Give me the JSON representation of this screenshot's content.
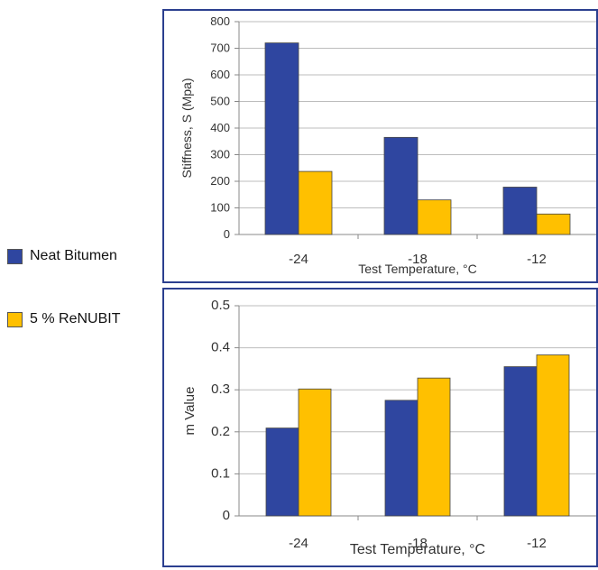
{
  "legend": {
    "items": [
      {
        "label": "Neat Bitumen",
        "color": "#2f46a0"
      },
      {
        "label": "5 % ReNUBIT",
        "color": "#ffc000"
      }
    ]
  },
  "chart_data": [
    {
      "type": "bar",
      "categories": [
        "-24",
        "-18",
        "-12"
      ],
      "series": [
        {
          "name": "Neat Bitumen",
          "values": [
            720,
            365,
            178
          ],
          "color": "#2f46a0"
        },
        {
          "name": "5 % ReNUBIT",
          "values": [
            237,
            130,
            77
          ],
          "color": "#ffc000"
        }
      ],
      "xlabel": "Test Temperature, °C",
      "ylabel": "Stiffness, S (Mpa)",
      "ylim": [
        0,
        800
      ],
      "yticks": [
        "0",
        "100",
        "200",
        "300",
        "400",
        "500",
        "600",
        "700",
        "800"
      ],
      "grid": true,
      "legend_position": "left"
    },
    {
      "type": "bar",
      "categories": [
        "-24",
        "-18",
        "-12"
      ],
      "series": [
        {
          "name": "Neat Bitumen",
          "values": [
            0.209,
            0.275,
            0.355
          ],
          "color": "#2f46a0"
        },
        {
          "name": "5 % ReNUBIT",
          "values": [
            0.302,
            0.328,
            0.383
          ],
          "color": "#ffc000"
        }
      ],
      "xlabel": "Test Temperature, °C",
      "ylabel": "m Value",
      "ylim": [
        0,
        0.5
      ],
      "yticks": [
        "0",
        "0.1",
        "0.2",
        "0.3",
        "0.4",
        "0.5"
      ],
      "grid": true,
      "legend_position": "left"
    }
  ]
}
